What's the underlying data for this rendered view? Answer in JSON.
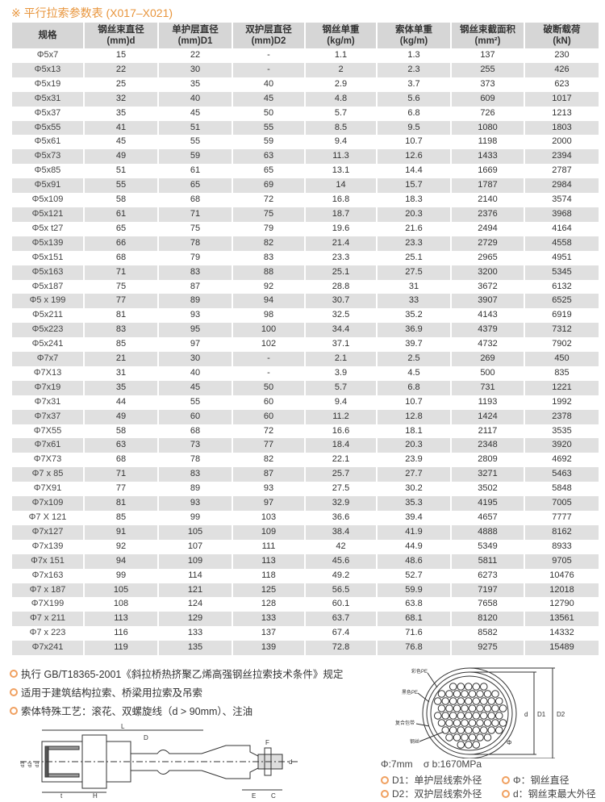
{
  "title": "※ 平行拉索参数表 (X017–X021)",
  "table": {
    "headers": [
      [
        "规格",
        ""
      ],
      [
        "钢丝束直径",
        "(mm)d"
      ],
      [
        "单护层直径",
        "(mm)D1"
      ],
      [
        "双护层直径",
        "(mm)D2"
      ],
      [
        "钢丝单重",
        "(kg/m)"
      ],
      [
        "索体单重",
        "(kg/m)"
      ],
      [
        "钢丝束截面积",
        "(mm²)"
      ],
      [
        "破断载荷",
        "(kN)"
      ]
    ],
    "rows": [
      [
        "Φ5x7",
        "15",
        "22",
        "-",
        "1.1",
        "1.3",
        "137",
        "230"
      ],
      [
        "Φ5x13",
        "22",
        "30",
        "-",
        "2",
        "2.3",
        "255",
        "426"
      ],
      [
        "Φ5x19",
        "25",
        "35",
        "40",
        "2.9",
        "3.7",
        "373",
        "623"
      ],
      [
        "Φ5x31",
        "32",
        "40",
        "45",
        "4.8",
        "5.6",
        "609",
        "1017"
      ],
      [
        "Φ5x37",
        "35",
        "45",
        "50",
        "5.7",
        "6.8",
        "726",
        "1213"
      ],
      [
        "Φ5x55",
        "41",
        "51",
        "55",
        "8.5",
        "9.5",
        "1080",
        "1803"
      ],
      [
        "Φ5x61",
        "45",
        "55",
        "59",
        "9.4",
        "10.7",
        "1198",
        "2000"
      ],
      [
        "Φ5x73",
        "49",
        "59",
        "63",
        "11.3",
        "12.6",
        "1433",
        "2394"
      ],
      [
        "Φ5x85",
        "51",
        "61",
        "65",
        "13.1",
        "14.4",
        "1669",
        "2787"
      ],
      [
        "Φ5x91",
        "55",
        "65",
        "69",
        "14",
        "15.7",
        "1787",
        "2984"
      ],
      [
        "Φ5x109",
        "58",
        "68",
        "72",
        "16.8",
        "18.3",
        "2140",
        "3574"
      ],
      [
        "Φ5x121",
        "61",
        "71",
        "75",
        "18.7",
        "20.3",
        "2376",
        "3968"
      ],
      [
        "Φ5x t27",
        "65",
        "75",
        "79",
        "19.6",
        "21.6",
        "2494",
        "4164"
      ],
      [
        "Φ5x139",
        "66",
        "78",
        "82",
        "21.4",
        "23.3",
        "2729",
        "4558"
      ],
      [
        "Φ5x151",
        "68",
        "79",
        "83",
        "23.3",
        "25.1",
        "2965",
        "4951"
      ],
      [
        "Φ5x163",
        "71",
        "83",
        "88",
        "25.1",
        "27.5",
        "3200",
        "5345"
      ],
      [
        "Φ5x187",
        "75",
        "87",
        "92",
        "28.8",
        "31",
        "3672",
        "6132"
      ],
      [
        "Φ5 x 199",
        "77",
        "89",
        "94",
        "30.7",
        "33",
        "3907",
        "6525"
      ],
      [
        "Φ5x211",
        "81",
        "93",
        "98",
        "32.5",
        "35.2",
        "4143",
        "6919"
      ],
      [
        "Φ5x223",
        "83",
        "95",
        "100",
        "34.4",
        "36.9",
        "4379",
        "7312"
      ],
      [
        "Φ5x241",
        "85",
        "97",
        "102",
        "37.1",
        "39.7",
        "4732",
        "7902"
      ],
      [
        "Φ7x7",
        "21",
        "30",
        "-",
        "2.1",
        "2.5",
        "269",
        "450"
      ],
      [
        "Φ7X13",
        "31",
        "40",
        "-",
        "3.9",
        "4.5",
        "500",
        "835"
      ],
      [
        "Φ7x19",
        "35",
        "45",
        "50",
        "5.7",
        "6.8",
        "731",
        "1221"
      ],
      [
        "Φ7x31",
        "44",
        "55",
        "60",
        "9.4",
        "10.7",
        "1193",
        "1992"
      ],
      [
        "Φ7x37",
        "49",
        "60",
        "60",
        "11.2",
        "12.8",
        "1424",
        "2378"
      ],
      [
        "Φ7X55",
        "58",
        "68",
        "72",
        "16.6",
        "18.1",
        "2117",
        "3535"
      ],
      [
        "Φ7x61",
        "63",
        "73",
        "77",
        "18.4",
        "20.3",
        "2348",
        "3920"
      ],
      [
        "Φ7X73",
        "68",
        "78",
        "82",
        "22.1",
        "23.9",
        "2809",
        "4692"
      ],
      [
        "Φ7 x 85",
        "71",
        "83",
        "87",
        "25.7",
        "27.7",
        "3271",
        "5463"
      ],
      [
        "Φ7X91",
        "77",
        "89",
        "93",
        "27.5",
        "30.2",
        "3502",
        "5848"
      ],
      [
        "Φ7x109",
        "81",
        "93",
        "97",
        "32.9",
        "35.3",
        "4195",
        "7005"
      ],
      [
        "Φ7 X 121",
        "85",
        "99",
        "103",
        "36.6",
        "39.4",
        "4657",
        "7777"
      ],
      [
        "Φ7x127",
        "91",
        "105",
        "109",
        "38.4",
        "41.9",
        "4888",
        "8162"
      ],
      [
        "Φ7x139",
        "92",
        "107",
        "111",
        "42",
        "44.9",
        "5349",
        "8933"
      ],
      [
        "Φ7x 151",
        "94",
        "109",
        "113",
        "45.6",
        "48.6",
        "5811",
        "9705"
      ],
      [
        "Φ7x163",
        "99",
        "114",
        "118",
        "49.2",
        "52.7",
        "6273",
        "10476"
      ],
      [
        "Φ7 x 187",
        "105",
        "121",
        "125",
        "56.5",
        "59.9",
        "7197",
        "12018"
      ],
      [
        "Φ7X199",
        "108",
        "124",
        "128",
        "60.1",
        "63.8",
        "7658",
        "12790"
      ],
      [
        "Φ7 x 211",
        "113",
        "129",
        "133",
        "63.7",
        "68.1",
        "8120",
        "13561"
      ],
      [
        "Φ7 x 223",
        "116",
        "133",
        "137",
        "67.4",
        "71.6",
        "8582",
        "14332"
      ],
      [
        "Φ7x241",
        "119",
        "135",
        "139",
        "72.8",
        "76.8",
        "9275",
        "15489"
      ]
    ]
  },
  "notes": [
    "执行 GB/T18365-2001《斜拉桥热挤聚乙烯高强钢丝拉索技术条件》规定",
    "适用于建筑结构拉索、桥梁用拉索及吊索",
    "索体特殊工艺：滚花、双螺旋线（d > 90mm）、注油"
  ],
  "left_diagram_labels": {
    "L": "L",
    "D": "D",
    "F": "F",
    "E": "E",
    "C": "C",
    "H": "H",
    "t": "t",
    "d": "d",
    "d3": "d3",
    "d2": "d2",
    "d1": "d1"
  },
  "right_diagram_labels": {
    "colored_pe": "彩色PE",
    "black_pe": "黑色PE",
    "tape": "复合包带",
    "wire": "钢丝",
    "d": "d",
    "D1": "D1",
    "D2": "D2",
    "phi": "Φ"
  },
  "spec": {
    "wire_dia": "Φ:7mm",
    "strength": "σ b:1670MPa"
  },
  "legend": [
    [
      "D1：单护层线索外径",
      "Φ：钢丝直径"
    ],
    [
      "D2：双护层线索外径",
      "d：钢丝束最大外径"
    ]
  ],
  "colors": {
    "accent": "#e8953c",
    "header_bg": "#d6d6d6",
    "stripe": "#e0e0e0"
  }
}
